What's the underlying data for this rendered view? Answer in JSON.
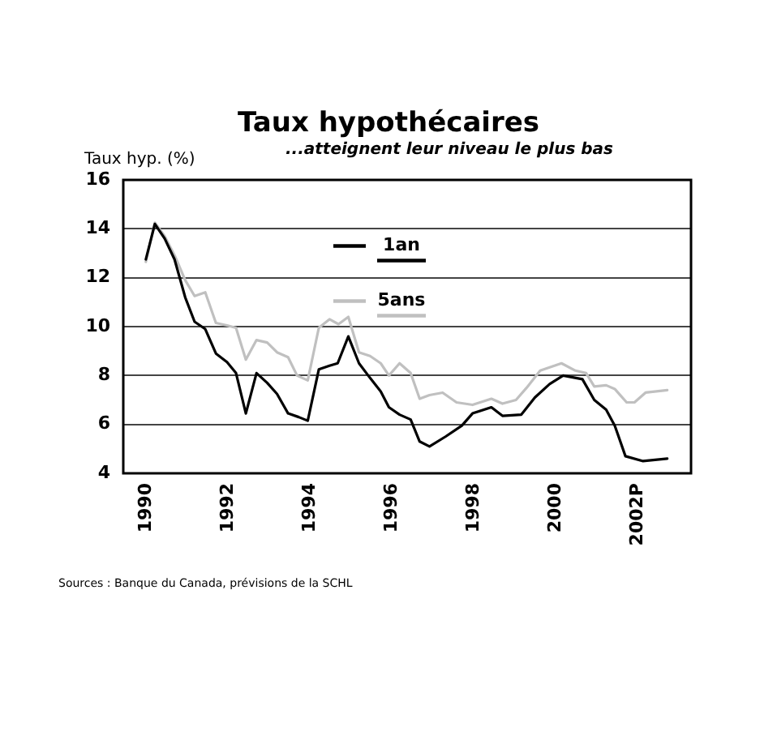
{
  "chart_data": {
    "type": "line",
    "title": "Taux hypothécaires",
    "subtitle": "...atteignent leur niveau le plus bas",
    "ylabel": "Taux hyp. (%)",
    "annotations": [
      "Sources : Banque du Canada, prévisions de la SCHL"
    ],
    "xlim": [
      1989.45,
      2003.3
    ],
    "xticks": [
      1990,
      1992,
      1994,
      1996,
      1998,
      2000,
      {
        "value": 2002,
        "label": "2002P"
      }
    ],
    "ylim": [
      4,
      16
    ],
    "yticks": [
      4,
      6,
      8,
      10,
      12,
      14,
      16
    ],
    "grid": "y",
    "legend": "top",
    "marker": "none",
    "line_style": "solid",
    "series": [
      {
        "name": "1an",
        "color": "#000000",
        "x": [
          1990.0,
          1990.22,
          1990.46,
          1990.7,
          1990.96,
          1991.19,
          1991.45,
          1991.71,
          1991.98,
          1992.2,
          1992.44,
          1992.7,
          1992.96,
          1993.2,
          1993.47,
          1993.73,
          1993.95,
          1994.22,
          1994.48,
          1994.68,
          1994.94,
          1995.2,
          1995.47,
          1995.73,
          1995.93,
          1996.19,
          1996.46,
          1996.68,
          1996.92,
          1997.31,
          1997.71,
          1997.97,
          1998.43,
          1998.7,
          1999.16,
          1999.49,
          1999.85,
          2000.18,
          2000.65,
          2000.94,
          2001.23,
          2001.44,
          2001.7,
          2002.13,
          2002.72
        ],
        "values": [
          12.75,
          14.2,
          13.6,
          12.75,
          11.2,
          10.2,
          9.9,
          8.9,
          8.55,
          8.1,
          6.45,
          8.1,
          7.7,
          7.25,
          6.45,
          6.3,
          6.15,
          8.25,
          8.4,
          8.5,
          9.6,
          8.5,
          7.9,
          7.35,
          6.7,
          6.4,
          6.2,
          5.3,
          5.1,
          5.5,
          5.95,
          6.45,
          6.7,
          6.35,
          6.4,
          7.1,
          7.65,
          8.0,
          7.85,
          7.0,
          6.6,
          5.95,
          4.7,
          4.5,
          4.6
        ]
      },
      {
        "name": "5ans",
        "color": "#c0c0c0",
        "x": [
          1990.0,
          1990.22,
          1990.46,
          1990.72,
          1990.96,
          1991.19,
          1991.45,
          1991.71,
          1991.98,
          1992.2,
          1992.44,
          1992.7,
          1992.96,
          1993.2,
          1993.47,
          1993.69,
          1993.95,
          1994.22,
          1994.48,
          1994.7,
          1994.94,
          1995.2,
          1995.47,
          1995.73,
          1995.93,
          1996.19,
          1996.46,
          1996.68,
          1996.92,
          1997.24,
          1997.58,
          1997.97,
          1998.43,
          1998.7,
          1999.03,
          1999.29,
          1999.62,
          2000.14,
          2000.48,
          2000.74,
          2000.94,
          2001.23,
          2001.44,
          2001.73,
          2001.92,
          2002.19,
          2002.72
        ],
        "values": [
          12.65,
          14.25,
          13.7,
          12.85,
          11.9,
          11.25,
          11.4,
          10.15,
          10.05,
          9.95,
          8.65,
          9.45,
          9.35,
          8.95,
          8.75,
          8.0,
          7.8,
          9.95,
          10.3,
          10.1,
          10.4,
          8.95,
          8.8,
          8.5,
          8.0,
          8.5,
          8.1,
          7.05,
          7.2,
          7.3,
          6.9,
          6.8,
          7.05,
          6.85,
          7.0,
          7.5,
          8.2,
          8.5,
          8.2,
          8.1,
          7.55,
          7.6,
          7.45,
          6.9,
          6.9,
          7.3,
          7.4
        ]
      }
    ]
  }
}
